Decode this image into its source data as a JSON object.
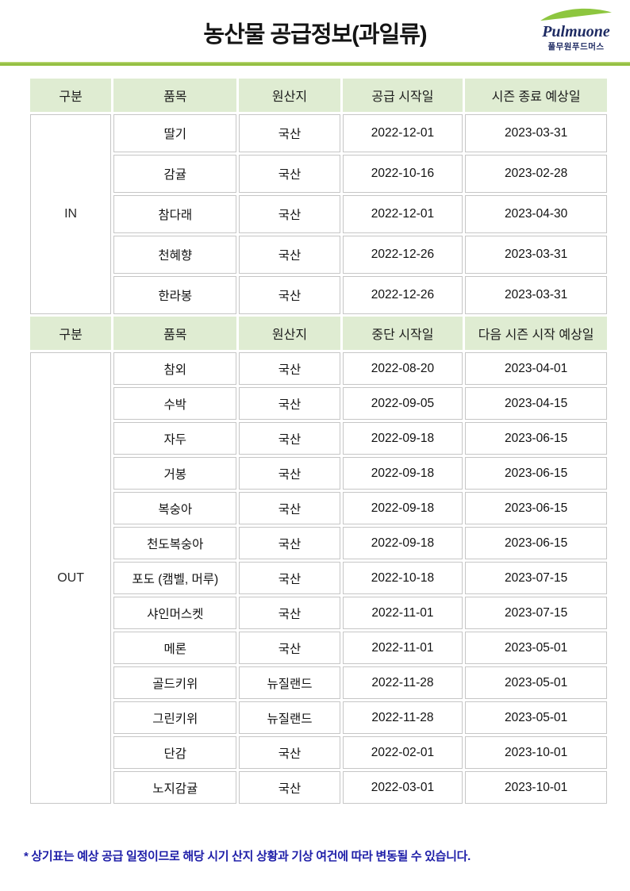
{
  "page": {
    "title": "농산물 공급정보(과일류)",
    "footnote": "* 상기표는 예상 공급 일정이므로 해당 시기 산지 상황과 기상 여건에 따라 변동될 수 있습니다."
  },
  "logo": {
    "brand": "Pulmuone",
    "subtitle": "풀무원푸드머스"
  },
  "colors": {
    "header_bg": "#dfecd2",
    "navy": "#1e2b63",
    "swoosh_green": "#8dc63f",
    "divider_green": "#8cba39",
    "cell_border": "#c6c6c6",
    "footnote_navy": "#1e1ea8"
  },
  "table": {
    "sections": [
      {
        "group": "IN",
        "headers": [
          "구분",
          "품목",
          "원산지",
          "공급 시작일",
          "시즌 종료 예상일"
        ],
        "rows": [
          {
            "item": "딸기",
            "origin": "국산",
            "start": "2022-12-01",
            "end": "2023-03-31"
          },
          {
            "item": "감귤",
            "origin": "국산",
            "start": "2022-10-16",
            "end": "2023-02-28"
          },
          {
            "item": "참다래",
            "origin": "국산",
            "start": "2022-12-01",
            "end": "2023-04-30"
          },
          {
            "item": "천혜향",
            "origin": "국산",
            "start": "2022-12-26",
            "end": "2023-03-31"
          },
          {
            "item": "한라봉",
            "origin": "국산",
            "start": "2022-12-26",
            "end": "2023-03-31"
          }
        ]
      },
      {
        "group": "OUT",
        "headers": [
          "구분",
          "품목",
          "원산지",
          "중단 시작일",
          "다음 시즌 시작 예상일"
        ],
        "rows": [
          {
            "item": "참외",
            "origin": "국산",
            "start": "2022-08-20",
            "end": "2023-04-01"
          },
          {
            "item": "수박",
            "origin": "국산",
            "start": "2022-09-05",
            "end": "2023-04-15"
          },
          {
            "item": "자두",
            "origin": "국산",
            "start": "2022-09-18",
            "end": "2023-06-15"
          },
          {
            "item": "거봉",
            "origin": "국산",
            "start": "2022-09-18",
            "end": "2023-06-15"
          },
          {
            "item": "복숭아",
            "origin": "국산",
            "start": "2022-09-18",
            "end": "2023-06-15"
          },
          {
            "item": "천도복숭아",
            "origin": "국산",
            "start": "2022-09-18",
            "end": "2023-06-15"
          },
          {
            "item": "포도 (캠벨, 머루)",
            "origin": "국산",
            "start": "2022-10-18",
            "end": "2023-07-15"
          },
          {
            "item": "샤인머스켓",
            "origin": "국산",
            "start": "2022-11-01",
            "end": "2023-07-15"
          },
          {
            "item": "메론",
            "origin": "국산",
            "start": "2022-11-01",
            "end": "2023-05-01"
          },
          {
            "item": "골드키위",
            "origin": "뉴질랜드",
            "start": "2022-11-28",
            "end": "2023-05-01"
          },
          {
            "item": "그린키위",
            "origin": "뉴질랜드",
            "start": "2022-11-28",
            "end": "2023-05-01"
          },
          {
            "item": "단감",
            "origin": "국산",
            "start": "2022-02-01",
            "end": "2023-10-01"
          },
          {
            "item": "노지감귤",
            "origin": "국산",
            "start": "2022-03-01",
            "end": "2023-10-01"
          }
        ]
      }
    ]
  }
}
